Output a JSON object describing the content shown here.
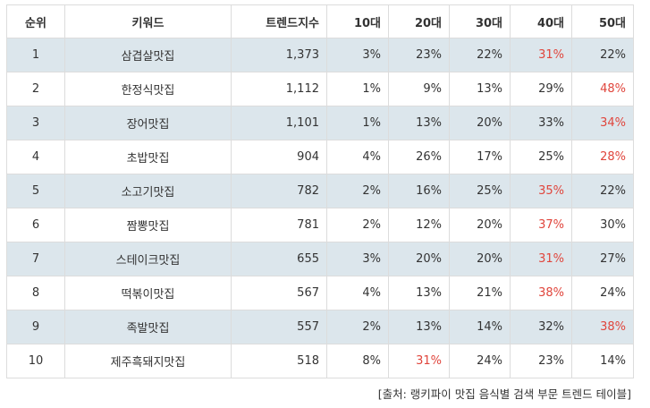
{
  "table": {
    "headers": [
      "순위",
      "키워드",
      "트렌드지수",
      "10대",
      "20대",
      "30대",
      "40대",
      "50대"
    ],
    "rows": [
      {
        "rank": "1",
        "keyword": "삼겹살맛집",
        "index": "1,373",
        "a10": "3%",
        "a20": "23%",
        "a30": "22%",
        "a40": "31%",
        "a50": "22%",
        "highlight": "a40"
      },
      {
        "rank": "2",
        "keyword": "한정식맛집",
        "index": "1,112",
        "a10": "1%",
        "a20": "9%",
        "a30": "13%",
        "a40": "29%",
        "a50": "48%",
        "highlight": "a50"
      },
      {
        "rank": "3",
        "keyword": "장어맛집",
        "index": "1,101",
        "a10": "1%",
        "a20": "13%",
        "a30": "20%",
        "a40": "33%",
        "a50": "34%",
        "highlight": "a50"
      },
      {
        "rank": "4",
        "keyword": "초밥맛집",
        "index": "904",
        "a10": "4%",
        "a20": "26%",
        "a30": "17%",
        "a40": "25%",
        "a50": "28%",
        "highlight": "a50"
      },
      {
        "rank": "5",
        "keyword": "소고기맛집",
        "index": "782",
        "a10": "2%",
        "a20": "16%",
        "a30": "25%",
        "a40": "35%",
        "a50": "22%",
        "highlight": "a40"
      },
      {
        "rank": "6",
        "keyword": "짬뽕맛집",
        "index": "781",
        "a10": "2%",
        "a20": "12%",
        "a30": "20%",
        "a40": "37%",
        "a50": "30%",
        "highlight": "a40"
      },
      {
        "rank": "7",
        "keyword": "스테이크맛집",
        "index": "655",
        "a10": "3%",
        "a20": "20%",
        "a30": "20%",
        "a40": "31%",
        "a50": "27%",
        "highlight": "a40"
      },
      {
        "rank": "8",
        "keyword": "떡볶이맛집",
        "index": "567",
        "a10": "4%",
        "a20": "13%",
        "a30": "21%",
        "a40": "38%",
        "a50": "24%",
        "highlight": "a40"
      },
      {
        "rank": "9",
        "keyword": "족발맛집",
        "index": "557",
        "a10": "2%",
        "a20": "13%",
        "a30": "14%",
        "a40": "32%",
        "a50": "38%",
        "highlight": "a50"
      },
      {
        "rank": "10",
        "keyword": "제주흑돼지맛집",
        "index": "518",
        "a10": "8%",
        "a20": "31%",
        "a30": "24%",
        "a40": "23%",
        "a50": "14%",
        "highlight": "a20"
      }
    ]
  },
  "source_caption": "[출처: 랭키파이 맛집 음식별 검색 부문 트렌드 테이블]",
  "colors": {
    "stripe": "#dce6ec",
    "highlight": "#e0453c",
    "border": "#dcdcdc",
    "text": "#333333"
  }
}
